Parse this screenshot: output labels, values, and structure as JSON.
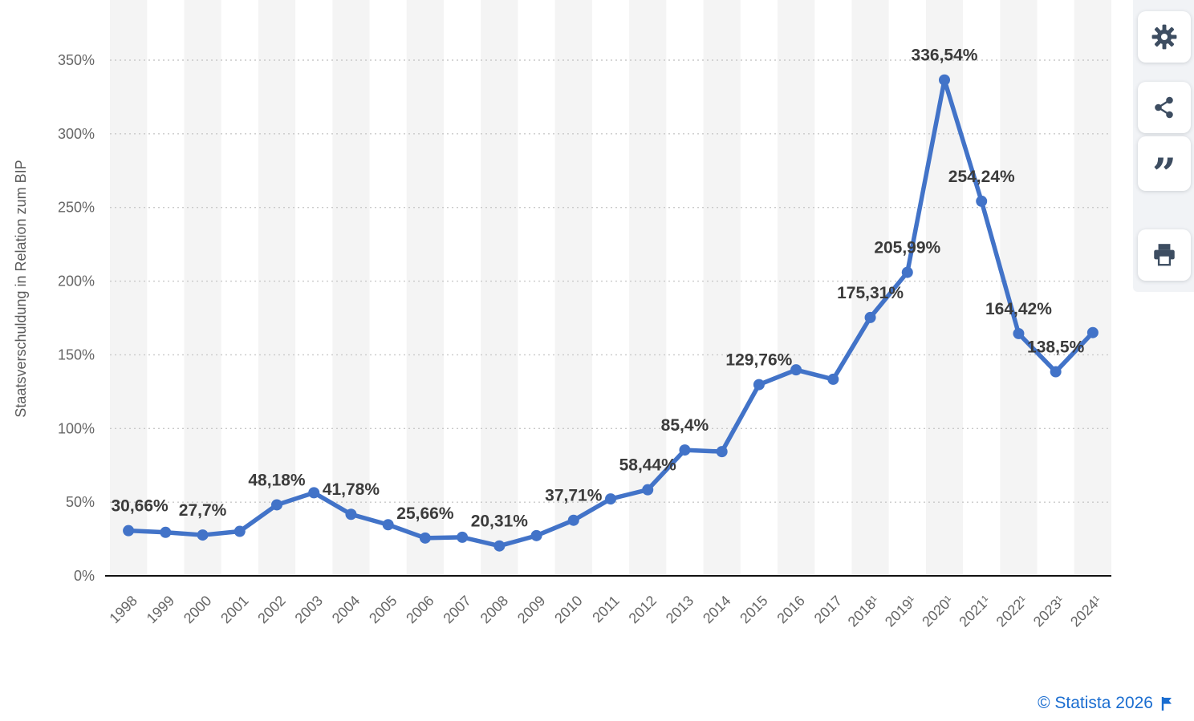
{
  "chart_data": {
    "type": "line",
    "title": "",
    "ylabel": "Staatsverschuldung in Relation zum BIP",
    "xlabel": "",
    "categories": [
      "1998",
      "1999",
      "2000",
      "2001",
      "2002",
      "2003",
      "2004",
      "2005",
      "2006",
      "2007",
      "2008",
      "2009",
      "2010",
      "2011",
      "2012",
      "2013",
      "2014",
      "2015",
      "2016",
      "2017",
      "2018¹",
      "2019¹",
      "2020¹",
      "2021¹",
      "2022¹",
      "2023¹",
      "2024¹"
    ],
    "values": [
      30.66,
      29.5,
      27.7,
      30.2,
      48.18,
      56.4,
      41.78,
      34.7,
      25.66,
      26.2,
      20.31,
      27.3,
      37.71,
      52.2,
      58.44,
      85.4,
      84.3,
      129.76,
      139.8,
      133.4,
      175.31,
      205.99,
      336.54,
      254.24,
      164.42,
      138.5,
      165.1
    ],
    "point_labels": {
      "1998": "30,66%",
      "2000": "27,7%",
      "2002": "48,18%",
      "2004": "41,78%",
      "2006": "25,66%",
      "2008": "20,31%",
      "2010": "37,71%",
      "2012": "58,44%",
      "2013": "85,4%",
      "2015": "129,76%",
      "2018¹": "175,31%",
      "2019¹": "205,99%",
      "2020¹": "336,54%",
      "2021¹": "254,24%",
      "2022¹": "164,42%",
      "2023¹": "138,5%"
    },
    "ylim": [
      0,
      350
    ],
    "yticks": [
      0,
      50,
      100,
      150,
      200,
      250,
      300,
      350
    ],
    "ytick_labels": [
      "0%",
      "50%",
      "100%",
      "150%",
      "200%",
      "250%",
      "300%",
      "350%"
    ],
    "grid": "horizontal-dotted",
    "legend": "none",
    "line_color": "#4273c8",
    "marker": "circle",
    "stripe_color": "#f4f4f4",
    "label_color": "#3b3b3b",
    "axis_text_color": "#666666"
  },
  "toolbar": {
    "icons": [
      "settings-icon",
      "share-icon",
      "citation-icon",
      "print-icon"
    ],
    "cite_glyph": "”"
  },
  "footer": {
    "copyright": "© Statista 2026",
    "flag_icon": "flag-icon"
  }
}
